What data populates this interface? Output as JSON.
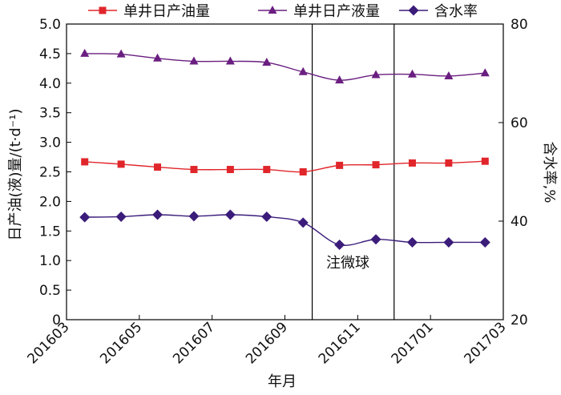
{
  "chart_data": {
    "type": "line",
    "xlabel": "年月",
    "ylabel_left": "日产油(液)量/(t·d⁻¹)",
    "ylabel_right": "含水率,%",
    "x_ticks": [
      "201603",
      "201605",
      "201607",
      "201609",
      "201611",
      "201701",
      "201703"
    ],
    "x_months": [
      "201603.5",
      "201604.5",
      "201605.5",
      "201606.5",
      "201607.5",
      "201608.5",
      "201609.5",
      "201610.5",
      "201611.5",
      "201612.5",
      "201701.5",
      "201702.5"
    ],
    "ylim_left": [
      0,
      5
    ],
    "yticks_left": [
      "0",
      "0.5",
      "1.0",
      "1.5",
      "2.0",
      "2.5",
      "3.0",
      "3.5",
      "4.0",
      "4.5",
      "5.0"
    ],
    "ylim_right": [
      20,
      80
    ],
    "yticks_right": [
      "20",
      "40",
      "60",
      "80"
    ],
    "series": [
      {
        "name": "单井日产油量",
        "axis": "left",
        "color": "#e0262b",
        "marker": "square",
        "values": [
          2.67,
          2.63,
          2.58,
          2.54,
          2.54,
          2.54,
          2.5,
          2.61,
          2.62,
          2.65,
          2.65,
          2.68
        ]
      },
      {
        "name": "单井日产液量",
        "axis": "left",
        "color": "#6a1e80",
        "marker": "triangle",
        "values": [
          4.5,
          4.49,
          4.42,
          4.37,
          4.37,
          4.35,
          4.19,
          4.05,
          4.14,
          4.15,
          4.12,
          4.17
        ]
      },
      {
        "name": "含水率",
        "axis": "right",
        "color": "#3b1c7a",
        "marker": "diamond",
        "values": [
          40.8,
          40.9,
          41.3,
          41.0,
          41.3,
          40.9,
          39.7,
          35.2,
          36.3,
          35.7,
          35.7,
          35.7
        ]
      }
    ],
    "vlines": [
      201609.75,
      201612.0
    ],
    "annotations": [
      {
        "text": "注微球",
        "x_between": [
          201609.75,
          201612.0
        ]
      }
    ],
    "grid": false,
    "legend_position": "top"
  }
}
